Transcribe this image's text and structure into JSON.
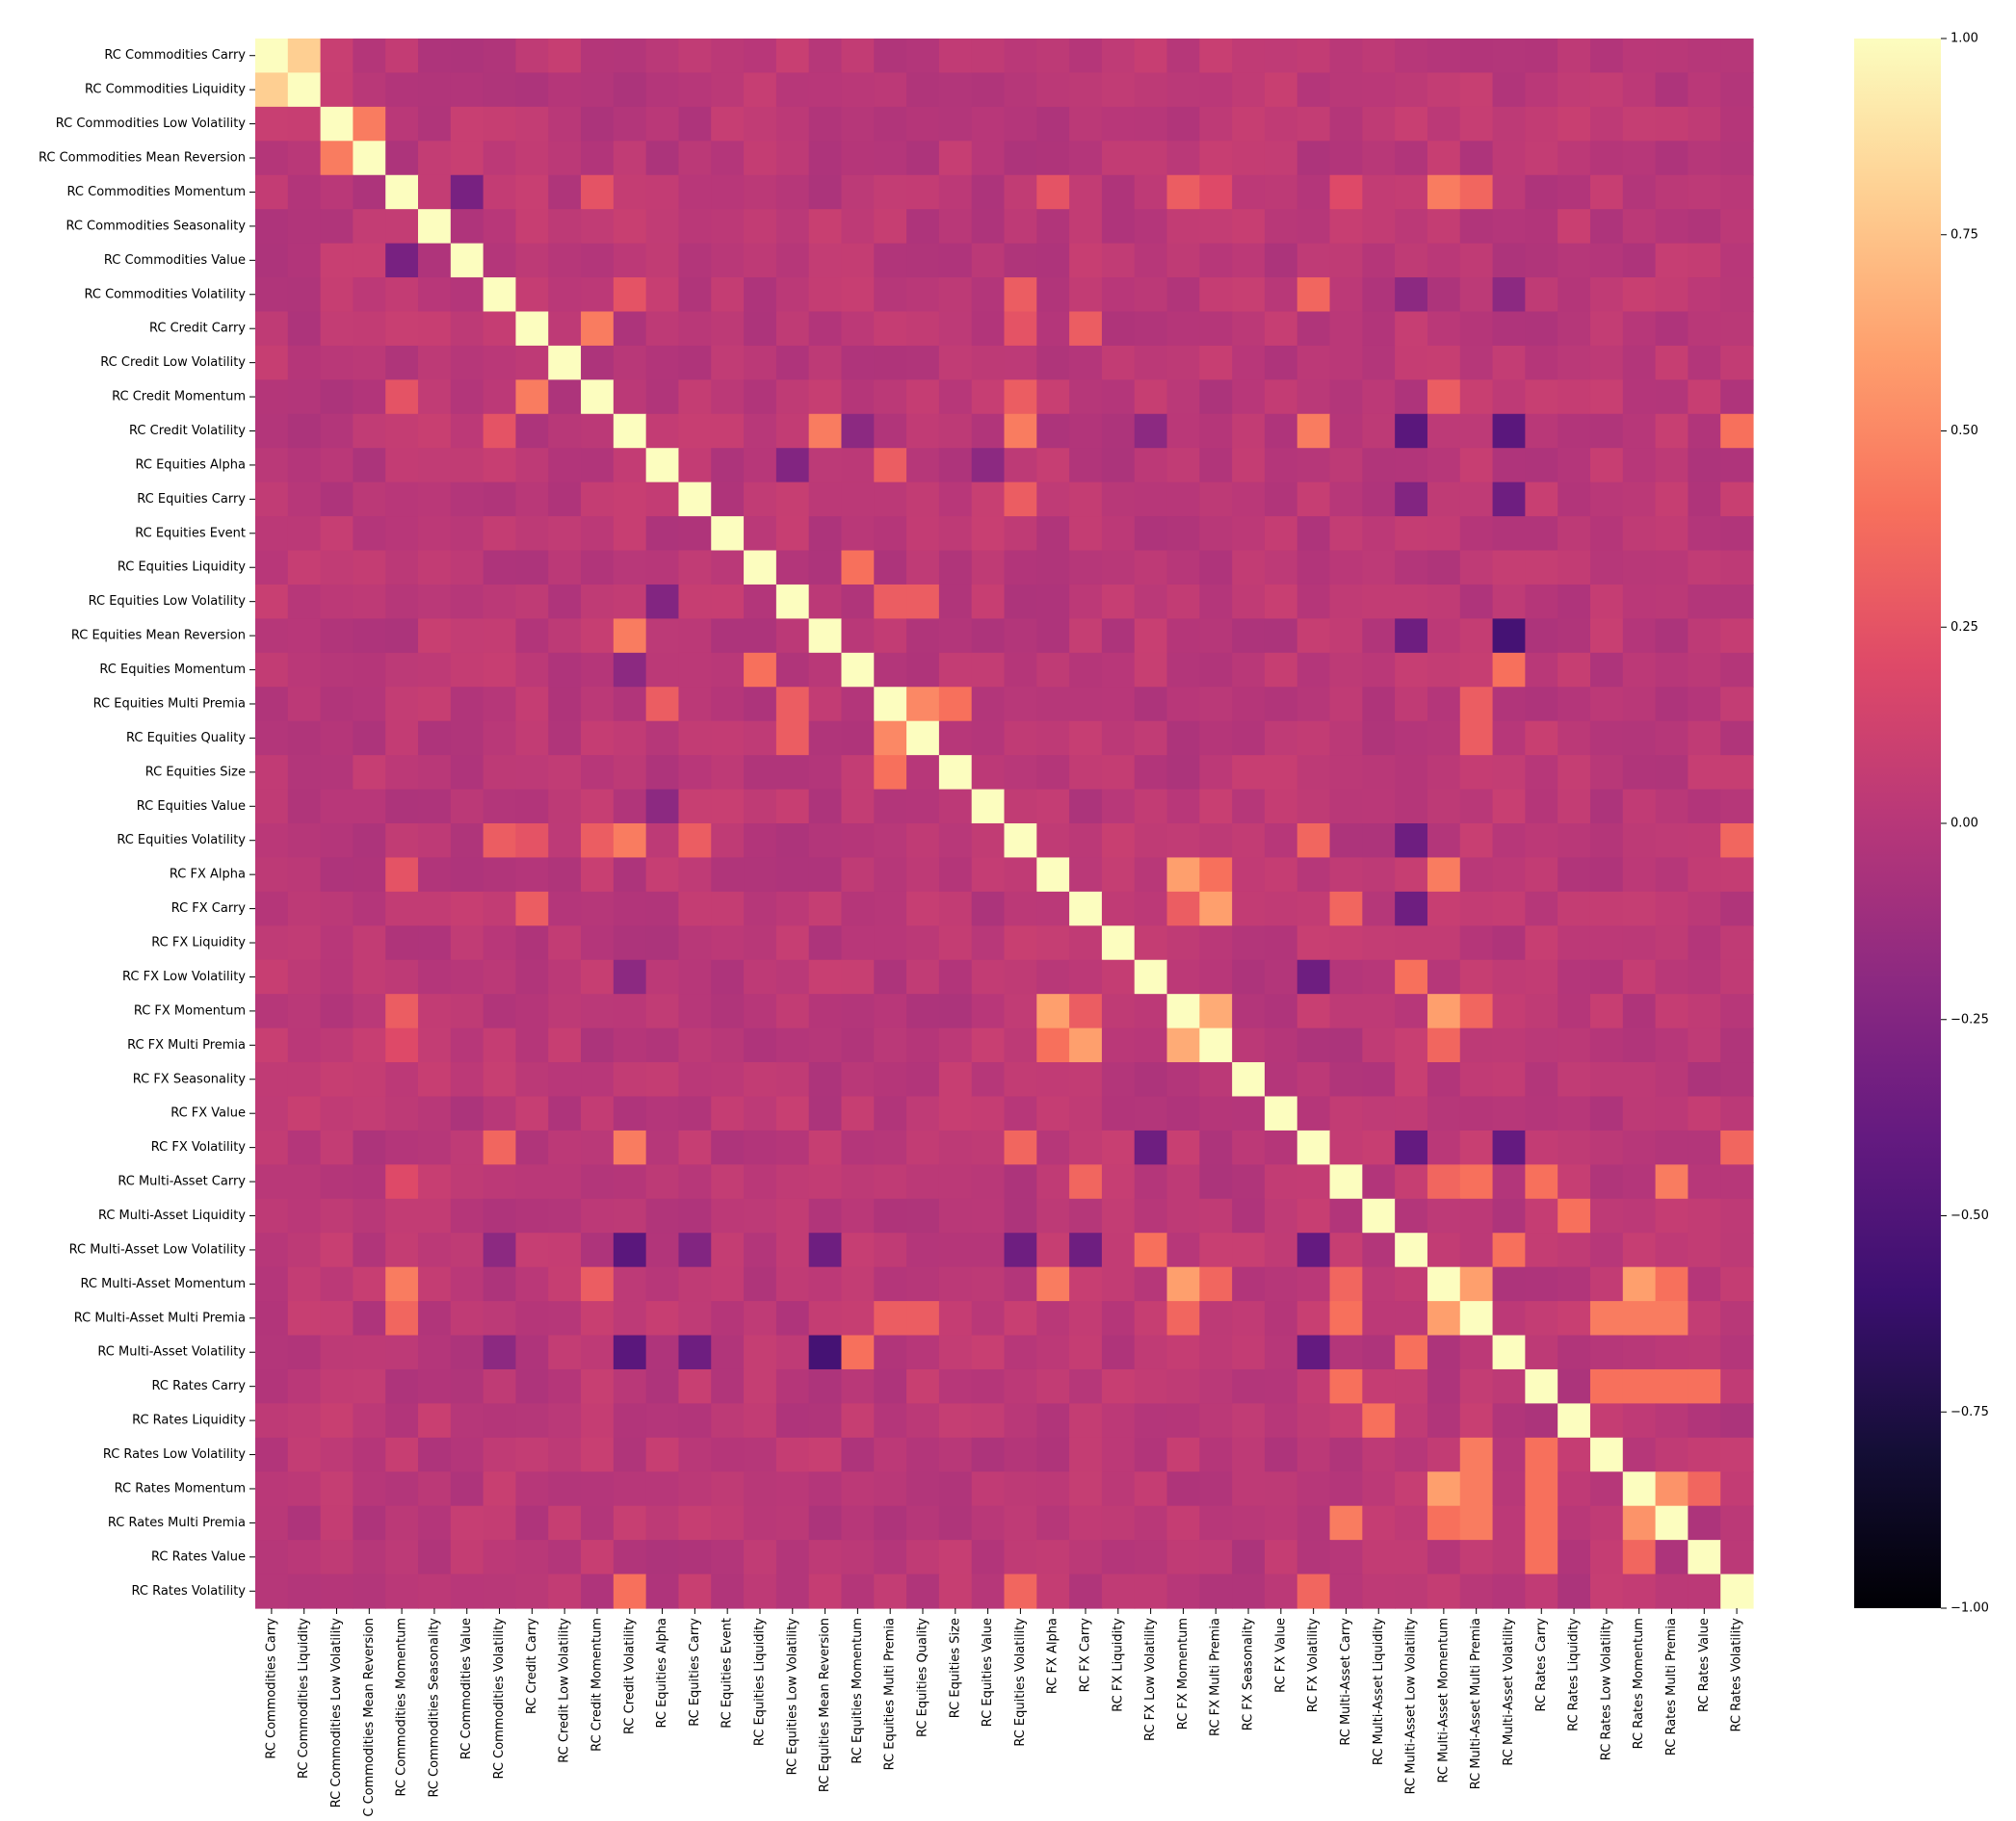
{
  "chart_data": {
    "type": "heatmap",
    "title": "",
    "xlabel": "",
    "ylabel": "",
    "colormap": "magma",
    "vmin": -1.0,
    "vmax": 1.0,
    "colorbar_ticks": [
      "1.00",
      "0.75",
      "0.50",
      "0.25",
      "0.00",
      "−0.25",
      "−0.50",
      "−0.75",
      "−1.00"
    ],
    "colorbar_tick_values": [
      1.0,
      0.75,
      0.5,
      0.25,
      0.0,
      -0.25,
      -0.5,
      -0.75,
      -1.0
    ],
    "labels": [
      "RC Commodities Carry",
      "RC Commodities Liquidity",
      "RC Commodities Low Volatility",
      "RC Commodities Mean Reversion",
      "RC Commodities Momentum",
      "RC Commodities Seasonality",
      "RC Commodities Value",
      "RC Commodities Volatility",
      "RC Credit Carry",
      "RC Credit Low Volatility",
      "RC Credit Momentum",
      "RC Credit Volatility",
      "RC Equities Alpha",
      "RC Equities Carry",
      "RC Equities Event",
      "RC Equities Liquidity",
      "RC Equities Low Volatility",
      "RC Equities Mean Reversion",
      "RC Equities Momentum",
      "RC Equities Multi Premia",
      "RC Equities Quality",
      "RC Equities Size",
      "RC Equities Value",
      "RC Equities Volatility",
      "RC FX Alpha",
      "RC FX Carry",
      "RC FX Liquidity",
      "RC FX Low Volatility",
      "RC FX Momentum",
      "RC FX Multi Premia",
      "RC FX Seasonality",
      "RC FX Value",
      "RC FX Volatility",
      "RC Multi-Asset Carry",
      "RC Multi-Asset Liquidity",
      "RC Multi-Asset Low Volatility",
      "RC Multi-Asset Momentum",
      "RC Multi-Asset Multi Premia",
      "RC Multi-Asset Volatility",
      "RC Rates Carry",
      "RC Rates Liquidity",
      "RC Rates Low Volatility",
      "RC Rates Momentum",
      "RC Rates Multi Premia",
      "RC Rates Value",
      "RC Rates Volatility"
    ],
    "x_tick_labels": [
      "RC Commodities Carry",
      "RC Commodities Liquidity",
      "RC Commodities Low Volatility",
      "C Commodities Mean Reversion",
      "RC Commodities Momentum",
      "RC Commodities Seasonality",
      "RC Commodities Value",
      "RC Commodities Volatility",
      "RC Credit Carry",
      "RC Credit Low Volatility",
      "RC Credit Momentum",
      "RC Credit Volatility",
      "RC Equities Alpha",
      "RC Equities Carry",
      "RC Equities Event",
      "RC Equities Liquidity",
      "RC Equities Low Volatility",
      "RC Equities Mean Reversion",
      "RC Equities Momentum",
      "RC Equities Multi Premia",
      "RC Equities Quality",
      "RC Equities Size",
      "RC Equities Value",
      "RC Equities Volatility",
      "RC FX Alpha",
      "RC FX Carry",
      "RC FX Liquidity",
      "RC FX Low Volatility",
      "RC FX Momentum",
      "RC FX Multi Premia",
      "RC FX Seasonality",
      "RC FX Value",
      "RC FX Volatility",
      "RC Multi-Asset Carry",
      "RC Multi-Asset Liquidity",
      "RC Multi-Asset Low Volatility",
      "RC Multi-Asset Momentum",
      "RC Multi-Asset Multi Premia",
      "RC Multi-Asset Volatility",
      "RC Rates Carry",
      "RC Rates Liquidity",
      "RC Rates Low Volatility",
      "RC Rates Momentum",
      "RC Rates Multi Premia",
      "RC Rates Value",
      "RC Rates Volatility"
    ],
    "notable_correlations": [
      {
        "a": 0,
        "b": 1,
        "value": 0.8
      },
      {
        "a": 2,
        "b": 3,
        "value": 0.45
      },
      {
        "a": 4,
        "b": 6,
        "value": -0.3
      },
      {
        "a": 4,
        "b": 36,
        "value": 0.45
      },
      {
        "a": 4,
        "b": 37,
        "value": 0.35
      },
      {
        "a": 4,
        "b": 28,
        "value": 0.3
      },
      {
        "a": 4,
        "b": 24,
        "value": 0.25
      },
      {
        "a": 4,
        "b": 10,
        "value": 0.25
      },
      {
        "a": 4,
        "b": 29,
        "value": 0.2
      },
      {
        "a": 4,
        "b": 33,
        "value": 0.2
      },
      {
        "a": 7,
        "b": 11,
        "value": 0.25
      },
      {
        "a": 7,
        "b": 23,
        "value": 0.3
      },
      {
        "a": 7,
        "b": 32,
        "value": 0.35
      },
      {
        "a": 7,
        "b": 35,
        "value": -0.2
      },
      {
        "a": 7,
        "b": 38,
        "value": -0.2
      },
      {
        "a": 8,
        "b": 10,
        "value": 0.45
      },
      {
        "a": 8,
        "b": 25,
        "value": 0.3
      },
      {
        "a": 8,
        "b": 23,
        "value": 0.25
      },
      {
        "a": 10,
        "b": 23,
        "value": 0.3
      },
      {
        "a": 10,
        "b": 36,
        "value": 0.3
      },
      {
        "a": 11,
        "b": 17,
        "value": 0.45
      },
      {
        "a": 11,
        "b": 23,
        "value": 0.45
      },
      {
        "a": 11,
        "b": 32,
        "value": 0.45
      },
      {
        "a": 11,
        "b": 45,
        "value": 0.4
      },
      {
        "a": 11,
        "b": 35,
        "value": -0.45
      },
      {
        "a": 11,
        "b": 38,
        "value": -0.45
      },
      {
        "a": 11,
        "b": 27,
        "value": -0.2
      },
      {
        "a": 11,
        "b": 18,
        "value": -0.2
      },
      {
        "a": 12,
        "b": 16,
        "value": -0.25
      },
      {
        "a": 12,
        "b": 22,
        "value": -0.2
      },
      {
        "a": 12,
        "b": 19,
        "value": 0.3
      },
      {
        "a": 13,
        "b": 38,
        "value": -0.35
      },
      {
        "a": 13,
        "b": 35,
        "value": -0.25
      },
      {
        "a": 13,
        "b": 23,
        "value": 0.3
      },
      {
        "a": 15,
        "b": 18,
        "value": 0.4
      },
      {
        "a": 16,
        "b": 19,
        "value": 0.3
      },
      {
        "a": 16,
        "b": 20,
        "value": 0.3
      },
      {
        "a": 17,
        "b": 38,
        "value": -0.55
      },
      {
        "a": 17,
        "b": 35,
        "value": -0.35
      },
      {
        "a": 18,
        "b": 38,
        "value": 0.4
      },
      {
        "a": 19,
        "b": 20,
        "value": 0.5
      },
      {
        "a": 19,
        "b": 21,
        "value": 0.4
      },
      {
        "a": 19,
        "b": 37,
        "value": 0.3
      },
      {
        "a": 20,
        "b": 37,
        "value": 0.3
      },
      {
        "a": 23,
        "b": 32,
        "value": 0.35
      },
      {
        "a": 23,
        "b": 45,
        "value": 0.35
      },
      {
        "a": 23,
        "b": 35,
        "value": -0.35
      },
      {
        "a": 24,
        "b": 28,
        "value": 0.6
      },
      {
        "a": 24,
        "b": 29,
        "value": 0.4
      },
      {
        "a": 24,
        "b": 36,
        "value": 0.45
      },
      {
        "a": 25,
        "b": 29,
        "value": 0.6
      },
      {
        "a": 25,
        "b": 28,
        "value": 0.3
      },
      {
        "a": 25,
        "b": 33,
        "value": 0.35
      },
      {
        "a": 25,
        "b": 35,
        "value": -0.35
      },
      {
        "a": 27,
        "b": 35,
        "value": 0.4
      },
      {
        "a": 27,
        "b": 32,
        "value": -0.35
      },
      {
        "a": 28,
        "b": 29,
        "value": 0.65
      },
      {
        "a": 28,
        "b": 36,
        "value": 0.6
      },
      {
        "a": 28,
        "b": 37,
        "value": 0.35
      },
      {
        "a": 29,
        "b": 36,
        "value": 0.35
      },
      {
        "a": 32,
        "b": 35,
        "value": -0.4
      },
      {
        "a": 32,
        "b": 38,
        "value": -0.4
      },
      {
        "a": 32,
        "b": 45,
        "value": 0.35
      },
      {
        "a": 33,
        "b": 36,
        "value": 0.35
      },
      {
        "a": 33,
        "b": 37,
        "value": 0.4
      },
      {
        "a": 33,
        "b": 39,
        "value": 0.4
      },
      {
        "a": 33,
        "b": 43,
        "value": 0.45
      },
      {
        "a": 34,
        "b": 40,
        "value": 0.4
      },
      {
        "a": 35,
        "b": 38,
        "value": 0.4
      },
      {
        "a": 36,
        "b": 37,
        "value": 0.6
      },
      {
        "a": 36,
        "b": 42,
        "value": 0.6
      },
      {
        "a": 36,
        "b": 43,
        "value": 0.4
      },
      {
        "a": 37,
        "b": 42,
        "value": 0.45
      },
      {
        "a": 37,
        "b": 43,
        "value": 0.45
      },
      {
        "a": 37,
        "b": 41,
        "value": 0.45
      },
      {
        "a": 39,
        "b": 41,
        "value": 0.4
      },
      {
        "a": 39,
        "b": 42,
        "value": 0.4
      },
      {
        "a": 39,
        "b": 43,
        "value": 0.4
      },
      {
        "a": 39,
        "b": 44,
        "value": 0.4
      },
      {
        "a": 42,
        "b": 43,
        "value": 0.55
      },
      {
        "a": 42,
        "b": 44,
        "value": 0.35
      }
    ]
  }
}
